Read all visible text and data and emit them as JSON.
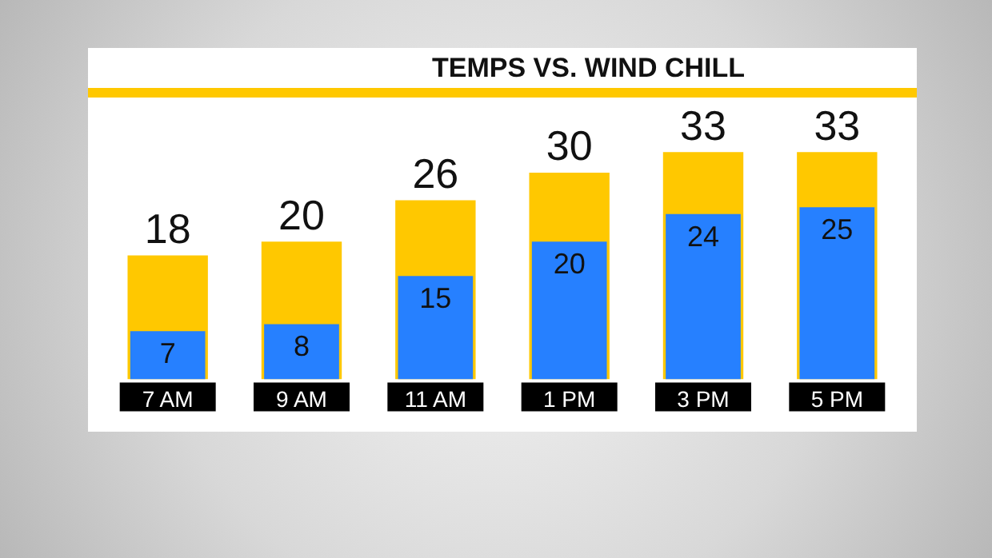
{
  "chart_data": {
    "type": "bar",
    "title": "TEMPS VS. WIND CHILL",
    "categories": [
      "7 AM",
      "9 AM",
      "11 AM",
      "1 PM",
      "3 PM",
      "5 PM"
    ],
    "series": [
      {
        "color": "#ffc800",
        "values": [
          18,
          20,
          26,
          30,
          33,
          33
        ]
      },
      {
        "color": "#2680ff",
        "values": [
          7,
          8,
          15,
          20,
          24,
          25
        ]
      }
    ],
    "data_labels": true,
    "grid": false,
    "legend": false
  }
}
